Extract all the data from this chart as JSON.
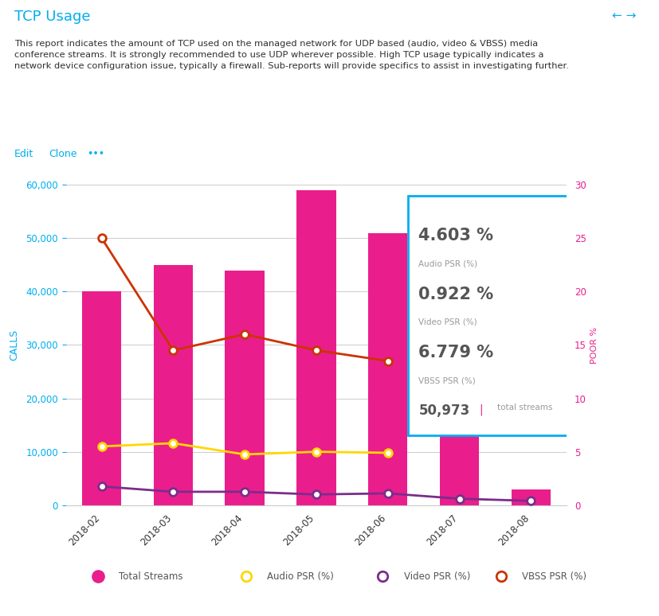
{
  "title": "TCP Usage",
  "title_color": "#00AEEF",
  "desc_line1": "This report indicates the amount of TCP used on the managed network for UDP based (audio, video & VBSS) media",
  "desc_line2": "conference streams. It is strongly recommended to use UDP wherever possible. High TCP usage typically indicates a",
  "desc_line3": "network device configuration issue, typically a firewall. Sub-reports will provide specifics to assist in investigating further.",
  "categories": [
    "2018-02",
    "2018-03",
    "2018-04",
    "2018-05",
    "2018-06",
    "2018-07",
    "2018-08"
  ],
  "bar_values": [
    40000,
    45000,
    44000,
    59000,
    51000,
    55000,
    3000
  ],
  "bar_color": "#E91E8C",
  "audio_psr": [
    5.5,
    5.8,
    4.75,
    5.0,
    4.9,
    null,
    null
  ],
  "video_psr": [
    1.75,
    1.25,
    1.25,
    1.0,
    1.1,
    0.6,
    0.4
  ],
  "vbss_psr": [
    25.0,
    14.5,
    16.0,
    14.5,
    13.5,
    null,
    null
  ],
  "left_ylim": [
    0,
    60000
  ],
  "left_yticks": [
    0,
    10000,
    20000,
    30000,
    40000,
    50000,
    60000
  ],
  "right_ylim": [
    0,
    30
  ],
  "right_yticks": [
    0,
    5,
    10,
    15,
    20,
    25,
    30
  ],
  "left_ylabel": "CALLS",
  "right_ylabel": "POOR %",
  "left_ylabel_color": "#00AEEF",
  "right_ylabel_color": "#E91E8C",
  "left_tick_color": "#00AEEF",
  "right_tick_color": "#E91E8C",
  "grid_color": "#d0d0d0",
  "background_color": "#ffffff",
  "total_streams_color": "#E91E8C",
  "audio_psr_color": "#FFD700",
  "video_psr_color": "#7B2D8B",
  "vbss_psr_color": "#CC3300",
  "tooltip_audio": "4.603 %",
  "tooltip_audio_label": "Audio PSR (%)",
  "tooltip_video": "0.922 %",
  "tooltip_video_label": "Video PSR (%)",
  "tooltip_vbss": "6.779 %",
  "tooltip_vbss_label": "VBSS PSR (%)",
  "tooltip_streams": "50,973",
  "tooltip_streams_label": "total streams",
  "legend_labels": [
    "Total Streams",
    "Audio PSR (%)",
    "Video PSR (%)",
    "VBSS PSR (%)"
  ],
  "legend_colors": [
    "#E91E8C",
    "#FFD700",
    "#7B2D8B",
    "#CC3300"
  ],
  "legend_filled": [
    true,
    false,
    false,
    false
  ]
}
